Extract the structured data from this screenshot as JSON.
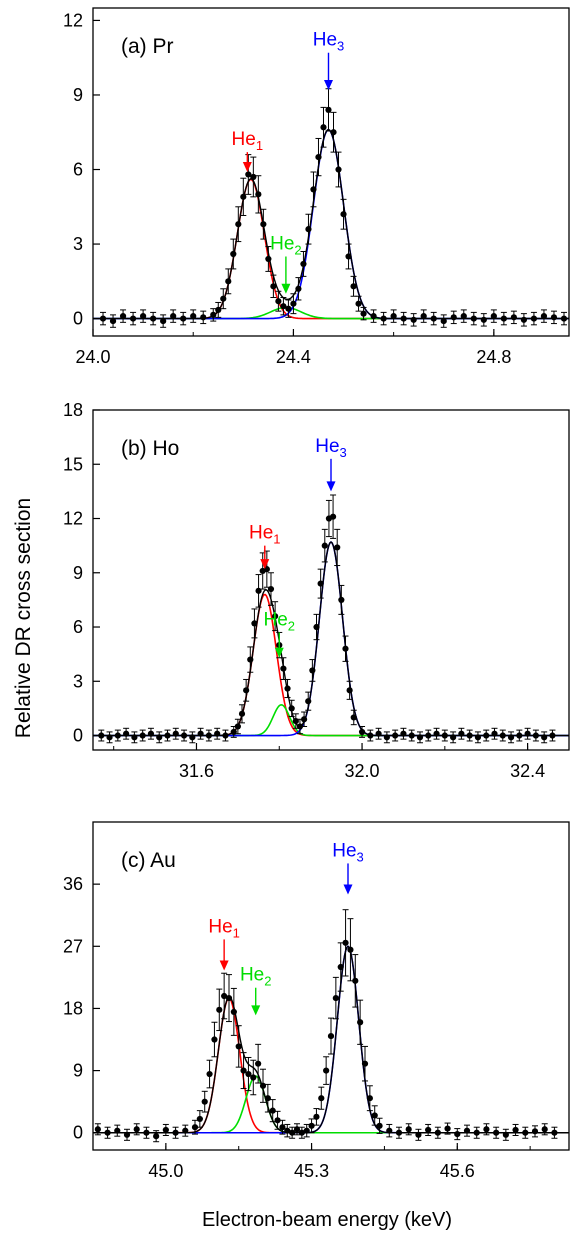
{
  "figure": {
    "ylabel": "Relative DR cross section",
    "xlabel": "Electron-beam energy (keV)"
  },
  "colors": {
    "he1": "#ff0000",
    "he2": "#00dd00",
    "he3": "#0000ff",
    "total": "#000000",
    "points": "#000000"
  },
  "chart_data": [
    {
      "type": "scatter",
      "panel_label": "(a) Pr",
      "xlim": [
        24.0,
        24.95
      ],
      "ylim": [
        -0.7,
        12.5
      ],
      "xticks": [
        24.0,
        24.4,
        24.8
      ],
      "xtick_labels": [
        "24.0",
        "24.4",
        "24.8"
      ],
      "yticks": [
        0,
        3,
        6,
        9,
        12
      ],
      "ytick_labels": [
        "0",
        "3",
        "6",
        "9",
        "12"
      ],
      "grid": false,
      "peaks": [
        {
          "name": "He",
          "sub": "1",
          "center": 24.315,
          "amplitude": 5.6,
          "sigma": 0.027,
          "arrow_x": 24.308,
          "arrow_top": 6.7,
          "arrow_tip": 5.9
        },
        {
          "name": "He",
          "sub": "2",
          "center": 24.385,
          "amplitude": 0.45,
          "sigma": 0.03,
          "arrow_x": 24.385,
          "arrow_top": 2.5,
          "arrow_tip": 1.0
        },
        {
          "name": "He",
          "sub": "3",
          "center": 24.47,
          "amplitude": 7.6,
          "sigma": 0.03,
          "arrow_x": 24.47,
          "arrow_top": 10.7,
          "arrow_tip": 9.2
        }
      ],
      "series": {
        "x": [
          24.02,
          24.04,
          24.06,
          24.08,
          24.1,
          24.12,
          24.14,
          24.16,
          24.18,
          24.2,
          24.22,
          24.24,
          24.25,
          24.26,
          24.27,
          24.28,
          24.29,
          24.3,
          24.31,
          24.32,
          24.33,
          24.34,
          24.35,
          24.36,
          24.37,
          24.38,
          24.39,
          24.4,
          24.41,
          24.42,
          24.43,
          24.44,
          24.45,
          24.46,
          24.47,
          24.48,
          24.49,
          24.5,
          24.51,
          24.52,
          24.53,
          24.54,
          24.56,
          24.58,
          24.6,
          24.62,
          24.64,
          24.66,
          24.68,
          24.7,
          24.72,
          24.74,
          24.76,
          24.78,
          24.8,
          24.82,
          24.84,
          24.86,
          24.88,
          24.9,
          24.92,
          24.94
        ],
        "y": [
          0.0,
          -0.1,
          0.1,
          0.0,
          0.1,
          0.0,
          -0.1,
          0.1,
          0.0,
          0.1,
          0.05,
          0.15,
          0.35,
          0.8,
          1.5,
          2.6,
          3.8,
          4.9,
          5.8,
          5.7,
          5.0,
          3.8,
          2.4,
          1.3,
          0.7,
          0.5,
          0.4,
          0.6,
          1.2,
          2.2,
          3.6,
          5.2,
          6.5,
          7.7,
          8.4,
          7.5,
          6.0,
          4.2,
          2.5,
          1.3,
          0.6,
          0.2,
          0.1,
          0.0,
          0.1,
          0.0,
          -0.05,
          0.1,
          0.0,
          -0.1,
          0.05,
          0.1,
          0.0,
          -0.05,
          0.1,
          0.0,
          0.05,
          -0.05,
          0.0,
          0.1,
          0.05,
          0.0
        ],
        "err": [
          0.25,
          0.25,
          0.25,
          0.25,
          0.25,
          0.25,
          0.25,
          0.25,
          0.25,
          0.25,
          0.25,
          0.25,
          0.3,
          0.4,
          0.5,
          0.6,
          0.7,
          0.75,
          0.8,
          0.8,
          0.75,
          0.6,
          0.5,
          0.45,
          0.4,
          0.35,
          0.35,
          0.4,
          0.45,
          0.5,
          0.6,
          0.7,
          0.75,
          0.8,
          0.85,
          0.8,
          0.7,
          0.6,
          0.5,
          0.4,
          0.3,
          0.25,
          0.25,
          0.25,
          0.25,
          0.25,
          0.25,
          0.25,
          0.25,
          0.25,
          0.25,
          0.25,
          0.25,
          0.25,
          0.25,
          0.25,
          0.25,
          0.25,
          0.25,
          0.25,
          0.25,
          0.25
        ]
      }
    },
    {
      "type": "scatter",
      "panel_label": "(b) Ho",
      "xlim": [
        31.35,
        32.5
      ],
      "ylim": [
        -0.8,
        18.0
      ],
      "xticks": [
        31.6,
        32.0,
        32.4
      ],
      "xtick_labels": [
        "31.6",
        "32.0",
        "32.4"
      ],
      "yticks": [
        0,
        3,
        6,
        9,
        12,
        15,
        18
      ],
      "ytick_labels": [
        "0",
        "3",
        "6",
        "9",
        "12",
        "15",
        "18"
      ],
      "grid": false,
      "peaks": [
        {
          "name": "He",
          "sub": "1",
          "center": 31.765,
          "amplitude": 7.8,
          "sigma": 0.028,
          "arrow_x": 31.765,
          "arrow_top": 10.5,
          "arrow_tip": 9.2
        },
        {
          "name": "He",
          "sub": "2",
          "center": 31.805,
          "amplitude": 1.7,
          "sigma": 0.02,
          "arrow_x": 31.8,
          "arrow_top": 5.7,
          "arrow_tip": 4.3
        },
        {
          "name": "He",
          "sub": "3",
          "center": 31.925,
          "amplitude": 10.7,
          "sigma": 0.028,
          "arrow_x": 31.925,
          "arrow_top": 15.3,
          "arrow_tip": 13.5
        }
      ],
      "series": {
        "x": [
          31.37,
          31.39,
          31.41,
          31.43,
          31.45,
          31.47,
          31.49,
          31.51,
          31.53,
          31.55,
          31.57,
          31.59,
          31.61,
          31.63,
          31.65,
          31.67,
          31.69,
          31.7,
          31.71,
          31.72,
          31.73,
          31.74,
          31.75,
          31.76,
          31.77,
          31.78,
          31.79,
          31.8,
          31.81,
          31.82,
          31.83,
          31.84,
          31.85,
          31.86,
          31.87,
          31.88,
          31.89,
          31.9,
          31.91,
          31.92,
          31.93,
          31.94,
          31.95,
          31.96,
          31.97,
          31.98,
          32.0,
          32.02,
          32.04,
          32.06,
          32.08,
          32.1,
          32.12,
          32.14,
          32.16,
          32.18,
          32.2,
          32.22,
          32.24,
          32.26,
          32.28,
          32.3,
          32.32,
          32.34,
          32.36,
          32.38,
          32.4,
          32.42,
          32.44,
          32.46
        ],
        "y": [
          0.0,
          -0.1,
          0.0,
          0.1,
          -0.1,
          0.0,
          0.1,
          -0.1,
          0.0,
          0.1,
          0.0,
          -0.1,
          0.1,
          0.0,
          0.1,
          0.0,
          0.2,
          0.5,
          1.2,
          2.5,
          4.2,
          6.2,
          8.0,
          9.1,
          9.2,
          8.1,
          6.6,
          5.0,
          3.7,
          2.6,
          1.5,
          0.8,
          0.5,
          0.9,
          1.9,
          3.6,
          6.0,
          8.4,
          10.5,
          12.0,
          12.1,
          10.4,
          7.5,
          4.8,
          2.5,
          1.0,
          0.2,
          0.0,
          0.1,
          -0.1,
          0.0,
          0.1,
          0.0,
          -0.1,
          0.0,
          0.1,
          0.0,
          -0.1,
          0.1,
          0.0,
          -0.1,
          0.0,
          0.1,
          0.0,
          -0.1,
          0.0,
          0.1,
          0.0,
          -0.1,
          0.0
        ],
        "err": [
          0.3,
          0.3,
          0.3,
          0.3,
          0.3,
          0.3,
          0.3,
          0.3,
          0.3,
          0.3,
          0.3,
          0.3,
          0.3,
          0.3,
          0.3,
          0.3,
          0.3,
          0.4,
          0.5,
          0.6,
          0.7,
          0.8,
          0.9,
          1.0,
          1.0,
          0.9,
          0.8,
          0.7,
          0.6,
          0.5,
          0.45,
          0.4,
          0.4,
          0.4,
          0.5,
          0.6,
          0.7,
          0.8,
          0.9,
          1.0,
          1.2,
          1.0,
          0.8,
          0.7,
          0.5,
          0.4,
          0.3,
          0.3,
          0.3,
          0.3,
          0.3,
          0.3,
          0.3,
          0.3,
          0.3,
          0.3,
          0.3,
          0.3,
          0.3,
          0.3,
          0.3,
          0.3,
          0.3,
          0.3,
          0.3,
          0.3,
          0.3,
          0.3,
          0.3,
          0.3
        ]
      }
    },
    {
      "type": "scatter",
      "panel_label": "(c) Au",
      "xlim": [
        44.85,
        45.83
      ],
      "ylim": [
        -2.5,
        45.0
      ],
      "xticks": [
        45.0,
        45.3,
        45.6
      ],
      "xtick_labels": [
        "45.0",
        "45.3",
        "45.6"
      ],
      "yticks": [
        0,
        9,
        18,
        27,
        36
      ],
      "ytick_labels": [
        "0",
        "9",
        "18",
        "27",
        "36"
      ],
      "grid": false,
      "peaks": [
        {
          "name": "He",
          "sub": "1",
          "center": 45.13,
          "amplitude": 19.5,
          "sigma": 0.022,
          "arrow_x": 45.12,
          "arrow_top": 28.0,
          "arrow_tip": 23.5
        },
        {
          "name": "He",
          "sub": "2",
          "center": 45.185,
          "amplitude": 8.2,
          "sigma": 0.02,
          "arrow_x": 45.185,
          "arrow_top": 21.0,
          "arrow_tip": 17.0
        },
        {
          "name": "He",
          "sub": "3",
          "center": 45.375,
          "amplitude": 27.0,
          "sigma": 0.022,
          "arrow_x": 45.375,
          "arrow_top": 39.0,
          "arrow_tip": 34.5
        }
      ],
      "series": {
        "x": [
          44.86,
          44.88,
          44.9,
          44.92,
          44.94,
          44.96,
          44.98,
          45.0,
          45.02,
          45.04,
          45.06,
          45.07,
          45.08,
          45.09,
          45.1,
          45.11,
          45.12,
          45.13,
          45.14,
          45.15,
          45.16,
          45.17,
          45.18,
          45.19,
          45.2,
          45.21,
          45.22,
          45.23,
          45.24,
          45.25,
          45.26,
          45.27,
          45.28,
          45.29,
          45.3,
          45.31,
          45.32,
          45.33,
          45.34,
          45.35,
          45.36,
          45.37,
          45.38,
          45.39,
          45.4,
          45.41,
          45.42,
          45.43,
          45.44,
          45.46,
          45.48,
          45.5,
          45.52,
          45.54,
          45.56,
          45.58,
          45.6,
          45.62,
          45.64,
          45.66,
          45.68,
          45.7,
          45.72,
          45.74,
          45.76,
          45.78,
          45.8
        ],
        "y": [
          0.5,
          0.0,
          0.3,
          -0.3,
          0.5,
          0.0,
          -0.5,
          0.4,
          0.0,
          0.3,
          0.8,
          2.0,
          4.5,
          8.5,
          13.5,
          17.8,
          19.8,
          19.5,
          17.5,
          12.5,
          9.0,
          8.5,
          8.0,
          10.0,
          6.8,
          5.0,
          3.2,
          1.8,
          0.8,
          0.3,
          0.0,
          0.5,
          0.0,
          0.3,
          1.0,
          2.3,
          5.0,
          9.0,
          14.0,
          19.5,
          24.0,
          27.5,
          26.5,
          22.0,
          16.0,
          10.0,
          5.0,
          2.5,
          1.0,
          0.3,
          0.0,
          0.5,
          -0.3,
          0.4,
          0.0,
          0.6,
          -0.2,
          0.3,
          0.0,
          0.5,
          0.0,
          -0.3,
          0.4,
          0.0,
          0.2,
          0.5,
          0.0
        ],
        "err": [
          0.8,
          0.8,
          0.8,
          0.8,
          0.8,
          0.8,
          0.8,
          0.8,
          0.8,
          0.8,
          1.0,
          1.2,
          1.5,
          2.0,
          2.5,
          3.0,
          3.3,
          3.4,
          3.4,
          3.0,
          2.6,
          2.4,
          2.5,
          2.8,
          2.4,
          2.0,
          1.6,
          1.3,
          1.0,
          0.9,
          0.8,
          0.8,
          0.8,
          0.9,
          1.0,
          1.2,
          1.6,
          2.0,
          2.6,
          3.0,
          3.5,
          4.8,
          4.5,
          3.8,
          3.2,
          2.5,
          1.8,
          1.4,
          1.1,
          0.9,
          0.8,
          0.8,
          0.8,
          0.8,
          0.8,
          0.8,
          0.8,
          0.8,
          0.8,
          0.8,
          0.8,
          0.8,
          0.8,
          0.8,
          0.8,
          0.8,
          0.8
        ]
      }
    }
  ]
}
